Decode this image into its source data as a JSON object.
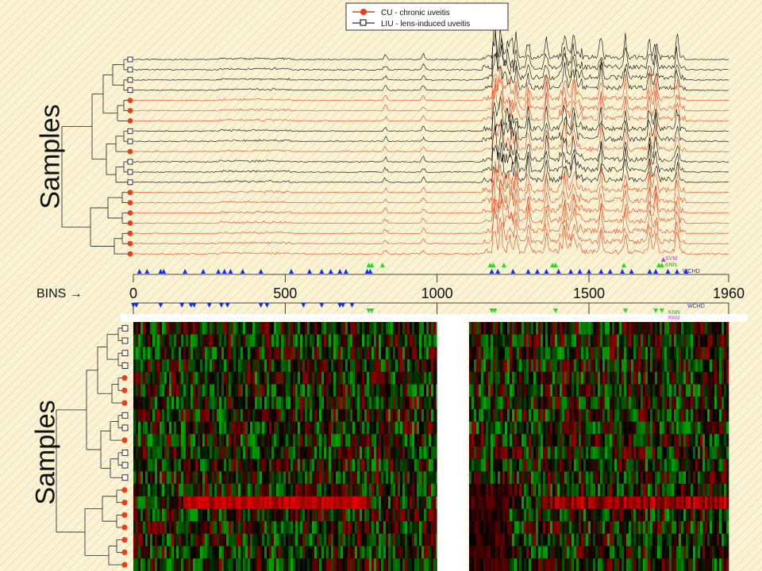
{
  "axis": {
    "samples_top": "Samples",
    "samples_bottom": "Samples",
    "bins_label": "BINS",
    "bins_arrow": "→"
  },
  "legend": [
    {
      "marker": "filled-circle",
      "color": "#e8401c",
      "label": "CU - chronic uveitis"
    },
    {
      "marker": "open-square",
      "color": "#000000",
      "label": "LIU - lens-induced uveitis"
    }
  ],
  "method_labels_top": [
    "SVM",
    "KNN",
    "WCHD"
  ],
  "method_labels_bottom": [
    "WCHD",
    "KNN",
    "PAM"
  ],
  "chart_data": [
    {
      "type": "line",
      "title": "",
      "xlabel": "BINS",
      "ylabel": "Samples",
      "xlim": [
        0,
        1960
      ],
      "x_ticks": [
        0,
        500,
        1000,
        1500,
        1960
      ],
      "samples": [
        "LIU",
        "LIU",
        "LIU",
        "LIU",
        "CU",
        "CU",
        "CU",
        "LIU",
        "LIU",
        "CU",
        "LIU",
        "LIU",
        "LIU",
        "CU",
        "CU",
        "CU",
        "CU",
        "CU",
        "CU",
        "CU"
      ],
      "sample_colors": {
        "CU": "#e8401c",
        "LIU": "#000000"
      },
      "peak_bins": [
        830,
        955,
        1190,
        1210,
        1260,
        1300,
        1360,
        1420,
        1450,
        1540,
        1620,
        1700,
        1720,
        1790
      ],
      "markers": [
        {
          "method": "SVM",
          "color": "#d23ad2",
          "bins": [
            1745
          ]
        },
        {
          "method": "KNN",
          "color": "#22dd22",
          "bins": [
            775,
            785,
            820,
            1175,
            1185,
            1220,
            1380,
            1390,
            1615,
            1730,
            1740
          ]
        },
        {
          "method": "WCHD",
          "color": "#1530e0",
          "bins": [
            20,
            45,
            90,
            100,
            170,
            230,
            280,
            300,
            320,
            360,
            420,
            520,
            580,
            620,
            650,
            680,
            700,
            770,
            780,
            1180,
            1200,
            1250,
            1300,
            1330,
            1360,
            1400,
            1440,
            1470,
            1500,
            1540,
            1570,
            1610,
            1640,
            1700,
            1720,
            1760,
            1790,
            1820
          ]
        }
      ]
    },
    {
      "type": "heatmap",
      "title": "",
      "xlabel": "BINS",
      "ylabel": "Samples",
      "xlim": [
        0,
        1960
      ],
      "gap_bins": [
        1000,
        1100
      ],
      "samples": [
        "LIU",
        "LIU",
        "LIU",
        "LIU",
        "CU",
        "CU",
        "CU",
        "LIU",
        "LIU",
        "CU",
        "LIU",
        "LIU",
        "LIU",
        "CU",
        "CU",
        "CU",
        "CU",
        "CU",
        "CU",
        "CU"
      ],
      "colors": {
        "low": "#19c219",
        "mid": "#000000",
        "high": "#e81010"
      },
      "markers": [
        {
          "method": "WCHD",
          "color": "#1530e0",
          "bins": [
            0,
            10,
            90,
            160,
            190,
            200,
            250,
            290,
            310,
            420,
            440,
            560,
            620,
            680,
            690,
            720
          ]
        },
        {
          "method": "KNN",
          "color": "#22dd22",
          "bins": [
            775,
            785,
            1180,
            1190,
            1390,
            1620,
            1720,
            1740
          ]
        },
        {
          "method": "PAM",
          "color": "#d23ad2",
          "bins": [
            1745
          ]
        }
      ]
    }
  ]
}
